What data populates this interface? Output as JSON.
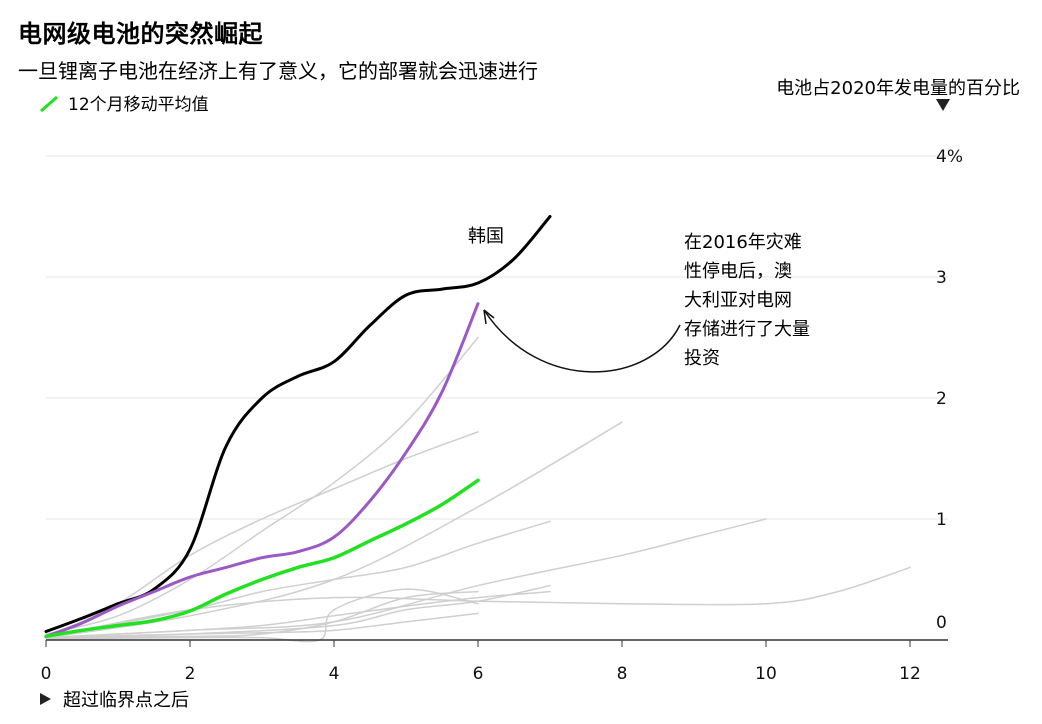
{
  "header": {
    "title": "电网级电池的突然崛起",
    "subtitle": "一旦锂离子电池在经济上有了意义，它的部署就会迅速进行",
    "legend_label": "12个月移动平均值",
    "ylabel": "电池占2020年发电量的百分比",
    "xnote": "超过临界点之后"
  },
  "colors": {
    "korea": "#000000",
    "australia": "#9b59c6",
    "average": "#22e022",
    "others": "#cfcfcf",
    "grid": "#e6e6e6"
  },
  "annotations": {
    "korea_label": "韩国",
    "australia_note": [
      "在2016年灾难",
      "性停电后，澳",
      "大利亚对电网",
      "存储进行了大量",
      "投资"
    ]
  },
  "chart_data": {
    "type": "line",
    "xlabel": "超过临界点之后",
    "ylabel": "电池占2020年发电量的百分比",
    "xlim": [
      0,
      12.5
    ],
    "ylim": [
      0,
      4
    ],
    "x_ticks": [
      "0",
      "2",
      "4",
      "6",
      "8",
      "10",
      "12"
    ],
    "y_ticks": [
      "0",
      "1",
      "2",
      "3",
      "4%"
    ],
    "series": [
      {
        "name": "韩国",
        "role": "korea",
        "x": [
          0,
          0.5,
          1,
          1.5,
          2,
          2.5,
          3,
          3.5,
          4,
          4.5,
          5,
          5.5,
          6,
          6.5,
          7
        ],
        "y": [
          0.07,
          0.18,
          0.3,
          0.42,
          0.75,
          1.6,
          2.0,
          2.18,
          2.3,
          2.6,
          2.85,
          2.9,
          2.95,
          3.15,
          3.5
        ]
      },
      {
        "role": "australia",
        "x": [
          0,
          0.5,
          1,
          1.5,
          2,
          2.5,
          3,
          3.5,
          4,
          4.5,
          5,
          5.5,
          6
        ],
        "y": [
          0.03,
          0.14,
          0.28,
          0.4,
          0.52,
          0.6,
          0.68,
          0.73,
          0.85,
          1.15,
          1.55,
          2.05,
          2.78
        ]
      },
      {
        "name": "12个月移动平均值",
        "role": "average",
        "x": [
          0,
          0.5,
          1,
          1.5,
          2,
          2.5,
          3,
          3.5,
          4,
          4.5,
          5,
          5.5,
          6
        ],
        "y": [
          0.03,
          0.08,
          0.12,
          0.16,
          0.24,
          0.38,
          0.5,
          0.6,
          0.68,
          0.82,
          0.96,
          1.12,
          1.32
        ]
      },
      {
        "role": "other",
        "x": [
          0,
          1,
          2,
          3,
          4,
          5,
          6
        ],
        "y": [
          0.05,
          0.2,
          0.5,
          0.9,
          1.3,
          1.8,
          2.5
        ]
      },
      {
        "role": "other",
        "x": [
          0,
          1,
          2,
          3,
          4,
          5,
          6
        ],
        "y": [
          0.02,
          0.3,
          0.7,
          1.0,
          1.25,
          1.5,
          1.72
        ]
      },
      {
        "role": "other",
        "x": [
          0,
          2,
          4,
          6,
          8
        ],
        "y": [
          0.02,
          0.2,
          0.5,
          1.1,
          1.8
        ]
      },
      {
        "role": "other",
        "x": [
          0,
          2,
          3,
          4,
          5,
          6,
          7
        ],
        "y": [
          0.02,
          0.25,
          0.4,
          0.5,
          0.6,
          0.8,
          0.98
        ]
      },
      {
        "role": "other",
        "x": [
          0,
          2,
          4,
          6,
          8,
          9,
          10
        ],
        "y": [
          0.02,
          0.08,
          0.15,
          0.45,
          0.7,
          0.85,
          1.0
        ]
      },
      {
        "role": "other",
        "x": [
          0,
          2,
          4,
          5,
          6,
          7
        ],
        "y": [
          0.02,
          0.05,
          0.12,
          0.25,
          0.32,
          0.45
        ]
      },
      {
        "role": "other",
        "x": [
          0,
          2,
          4,
          6,
          8,
          10,
          11,
          12
        ],
        "y": [
          0.02,
          0.25,
          0.35,
          0.32,
          0.3,
          0.3,
          0.4,
          0.6
        ]
      },
      {
        "role": "other",
        "x": [
          0,
          2,
          3,
          4,
          5,
          6
        ],
        "y": [
          0.02,
          0.03,
          0.05,
          0.15,
          0.35,
          0.4
        ]
      },
      {
        "role": "other",
        "x": [
          0,
          2,
          3,
          4,
          5,
          6,
          7
        ],
        "y": [
          0.02,
          0.08,
          0.12,
          0.2,
          0.28,
          0.35,
          0.4
        ]
      },
      {
        "role": "other",
        "x": [
          0,
          2,
          3,
          4,
          5,
          6
        ],
        "y": [
          0.02,
          0.05,
          0.06,
          0.08,
          0.15,
          0.22
        ]
      },
      {
        "role": "other",
        "x": [
          0,
          2,
          3,
          3.8,
          4,
          5,
          6
        ],
        "y": [
          0.01,
          0.02,
          0.02,
          0.0,
          0.25,
          0.42,
          0.3
        ]
      }
    ]
  }
}
